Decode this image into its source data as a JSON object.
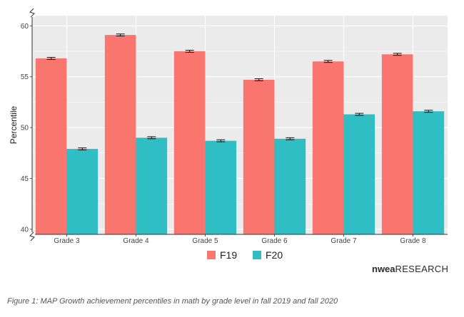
{
  "chart_data": {
    "type": "bar",
    "categories": [
      "Grade 3",
      "Grade 4",
      "Grade 5",
      "Grade 6",
      "Grade 7",
      "Grade 8"
    ],
    "series": [
      {
        "name": "F19",
        "values": [
          56.8,
          59.1,
          57.5,
          54.7,
          56.5,
          57.2
        ],
        "errors": [
          0.1,
          0.1,
          0.1,
          0.1,
          0.1,
          0.1
        ]
      },
      {
        "name": "F20",
        "values": [
          47.9,
          49.0,
          48.7,
          48.9,
          51.3,
          51.6
        ],
        "errors": [
          0.1,
          0.1,
          0.1,
          0.1,
          0.1,
          0.1
        ]
      }
    ],
    "xlabel": "",
    "ylabel": "Percentile",
    "ylim": [
      39.5,
      61
    ],
    "yticks": [
      40,
      45,
      50,
      55,
      60
    ],
    "ytick_labels": [
      "40",
      "45",
      "50",
      "55",
      "60"
    ],
    "grid": true,
    "legend_position": "bottom",
    "axis_break": true
  },
  "colors": {
    "F19": "#f8766d",
    "F20": "#2ebec4",
    "panel_background": "#ebebeb",
    "grid": "#ffffff"
  },
  "logo": {
    "bold": "nwea",
    "rest": "RESEARCH"
  },
  "caption": "Figure 1: MAP Growth achievement percentiles in math by grade level in fall 2019 and fall 2020"
}
